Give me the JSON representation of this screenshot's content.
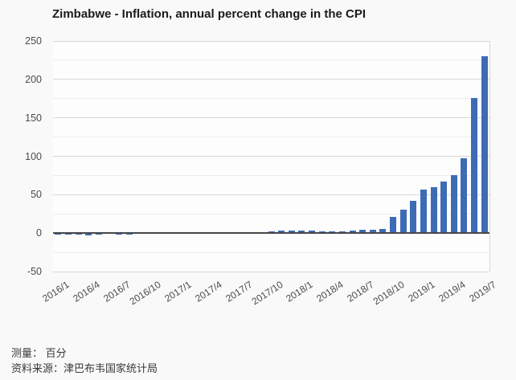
{
  "footer": {
    "measure": "测量： 百分",
    "source": "资料来源：津巴布韦国家统计局"
  },
  "colors": {
    "bar": "#3d6cb5",
    "grid_major": "#d7d7db",
    "grid_minor": "#ededf0",
    "zero_line": "#47474a",
    "axis_text": "#4b4b4f",
    "title_text": "#1b1b1b",
    "background": "#f9f9fa",
    "plot_background": "#fdfdfe"
  },
  "chart_data": {
    "type": "bar",
    "title": "Zimbabwe - Inflation, annual percent change in the CPI",
    "xlabel": "",
    "ylabel": "",
    "ylim": [
      -50,
      250
    ],
    "yticks": [
      250,
      200,
      150,
      100,
      50,
      0,
      -50
    ],
    "y_minor_step": 25,
    "xtick_every": 3,
    "grid": "horizontal",
    "legend": "none",
    "x": [
      "2016/1",
      "2016/2",
      "2016/3",
      "2016/4",
      "2016/5",
      "2016/6",
      "2016/7",
      "2016/8",
      "2016/9",
      "2016/10",
      "2016/11",
      "2016/12",
      "2017/1",
      "2017/2",
      "2017/3",
      "2017/4",
      "2017/5",
      "2017/6",
      "2017/7",
      "2017/8",
      "2017/9",
      "2017/10",
      "2017/11",
      "2017/12",
      "2018/1",
      "2018/2",
      "2018/3",
      "2018/4",
      "2018/5",
      "2018/6",
      "2018/7",
      "2018/8",
      "2018/9",
      "2018/10",
      "2018/11",
      "2018/12",
      "2019/1",
      "2019/2",
      "2019/3",
      "2019/4",
      "2019/5",
      "2019/6",
      "2019/7"
    ],
    "values": [
      -2.19,
      -2.22,
      -2.31,
      -2.48,
      -1.69,
      -1.4,
      -1.6,
      -1.41,
      -1.33,
      -0.95,
      -1.12,
      -0.93,
      -0.65,
      -0.06,
      0.21,
      0.48,
      0.75,
      0.31,
      0.14,
      0.14,
      0.78,
      2.24,
      2.97,
      3.46,
      3.52,
      2.98,
      2.68,
      2.71,
      2.71,
      2.91,
      4.29,
      4.83,
      5.39,
      20.85,
      31.01,
      42.09,
      56.9,
      59.39,
      66.8,
      75.86,
      97.85,
      175.66,
      230.41
    ]
  }
}
